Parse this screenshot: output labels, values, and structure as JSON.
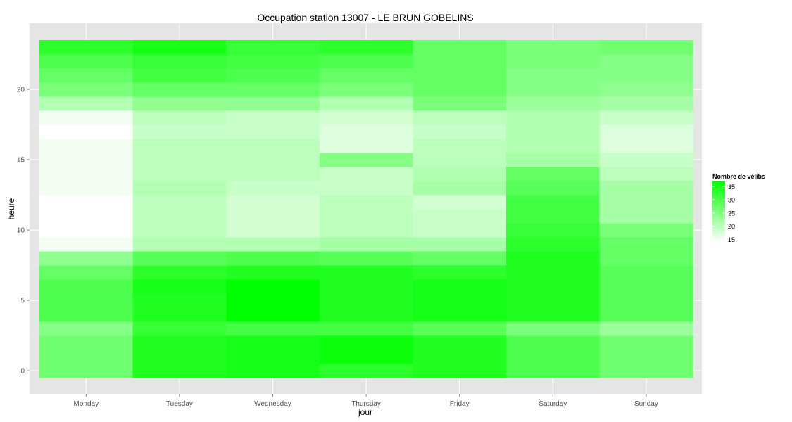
{
  "chart_data": {
    "type": "heatmap",
    "title": "Occupation station 13007 - LE BRUN GOBELINS",
    "xlabel": "jour",
    "ylabel": "heure",
    "x_categories": [
      "Monday",
      "Tuesday",
      "Wednesday",
      "Thursday",
      "Friday",
      "Saturday",
      "Sunday"
    ],
    "y_ticks": [
      0,
      5,
      10,
      15,
      20
    ],
    "ylim": [
      -0.5,
      23.5
    ],
    "grid": true,
    "legend": {
      "title": "Nombre de vélibs",
      "placement": "right",
      "min": 14,
      "max": 37,
      "ticks": [
        15,
        20,
        25,
        30,
        35
      ],
      "low_color": "#ffffff",
      "high_color": "#00ff00"
    },
    "values": [
      [
        27,
        34,
        35,
        33,
        34,
        30,
        27
      ],
      [
        27,
        34,
        35,
        36,
        34,
        30,
        27
      ],
      [
        27,
        34,
        35,
        36,
        34,
        30,
        27
      ],
      [
        25,
        32,
        31,
        31,
        29,
        26,
        23
      ],
      [
        30,
        34,
        37,
        34,
        35,
        34,
        29
      ],
      [
        30,
        34,
        37,
        34,
        35,
        34,
        29
      ],
      [
        30,
        35,
        37,
        34,
        35,
        34,
        29
      ],
      [
        28,
        33,
        34,
        34,
        33,
        34,
        29
      ],
      [
        24,
        29,
        30,
        29,
        28,
        34,
        28
      ],
      [
        15,
        21,
        21,
        22,
        22,
        33,
        28
      ],
      [
        14,
        20,
        18,
        20,
        19,
        32,
        26
      ],
      [
        14,
        20,
        18,
        20,
        19,
        31,
        22
      ],
      [
        14,
        20,
        18,
        20,
        18,
        31,
        22
      ],
      [
        15,
        21,
        19,
        19,
        22,
        29,
        22
      ],
      [
        15,
        20,
        20,
        19,
        21,
        28,
        20
      ],
      [
        15,
        20,
        20,
        25,
        20,
        22,
        19
      ],
      [
        15,
        20,
        20,
        17,
        20,
        21,
        17
      ],
      [
        14,
        19,
        19,
        17,
        19,
        21,
        17
      ],
      [
        15,
        20,
        19,
        18,
        20,
        21,
        19
      ],
      [
        21,
        24,
        24,
        21,
        26,
        23,
        22
      ],
      [
        26,
        28,
        28,
        26,
        28,
        25,
        24
      ],
      [
        28,
        31,
        30,
        28,
        28,
        25,
        25
      ],
      [
        30,
        32,
        31,
        30,
        28,
        26,
        25
      ],
      [
        33,
        35,
        32,
        33,
        28,
        26,
        27
      ]
    ]
  }
}
